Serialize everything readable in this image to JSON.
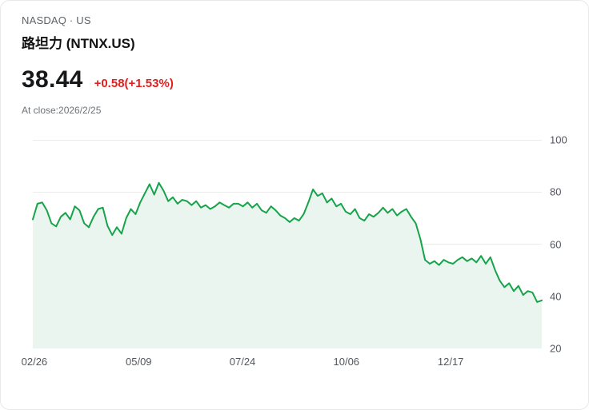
{
  "header": {
    "exchange": "NASDAQ · US",
    "title": "路坦力 (NTNX.US)"
  },
  "quote": {
    "price": "38.44",
    "change": "+0.58(+1.53%)",
    "at_close": "At close:2026/2/25"
  },
  "colors": {
    "line": "#16a34a",
    "area_fill": "#e9f5ee",
    "grid": "#ececec",
    "change_up": "#e02020",
    "axis_text": "#53575c"
  },
  "chart_data": {
    "type": "area",
    "ylabel": "",
    "xlabel": "",
    "ylim": [
      20,
      100
    ],
    "y_ticks": [
      100,
      80,
      60,
      40,
      20
    ],
    "x_ticks": [
      {
        "label": "02/26",
        "pos": 0.003
      },
      {
        "label": "05/09",
        "pos": 0.208
      },
      {
        "label": "07/24",
        "pos": 0.412
      },
      {
        "label": "10/06",
        "pos": 0.616
      },
      {
        "label": "12/17",
        "pos": 0.821
      }
    ],
    "values": [
      69.5,
      75.5,
      76,
      73,
      68,
      66.8,
      70.5,
      72,
      69.5,
      74.5,
      73,
      68,
      66.5,
      70.5,
      73.5,
      74,
      67,
      63.5,
      66.5,
      64,
      70,
      73.5,
      71.5,
      76,
      79.5,
      83,
      79,
      83.5,
      80.5,
      76.5,
      78,
      75.5,
      77,
      76.5,
      75,
      76.5,
      74,
      75,
      73.5,
      74.5,
      76,
      75,
      74,
      75.5,
      75.5,
      74.5,
      76,
      74,
      75.5,
      73,
      72,
      74.5,
      73,
      71,
      70,
      68.5,
      70,
      69,
      71.5,
      76,
      81,
      78.5,
      79.5,
      76,
      77.5,
      74.5,
      75.5,
      72.5,
      71.5,
      73.5,
      70,
      69,
      71.5,
      70.5,
      72,
      74,
      72,
      73.5,
      71,
      72.5,
      73.5,
      70.5,
      68,
      62,
      54,
      52.5,
      53.5,
      52,
      54,
      53,
      52.5,
      54,
      55,
      53.5,
      54.5,
      53,
      55.5,
      52.5,
      55,
      50,
      46,
      43.5,
      45,
      42,
      44,
      40.5,
      42,
      41.5,
      37.8,
      38.44
    ]
  }
}
